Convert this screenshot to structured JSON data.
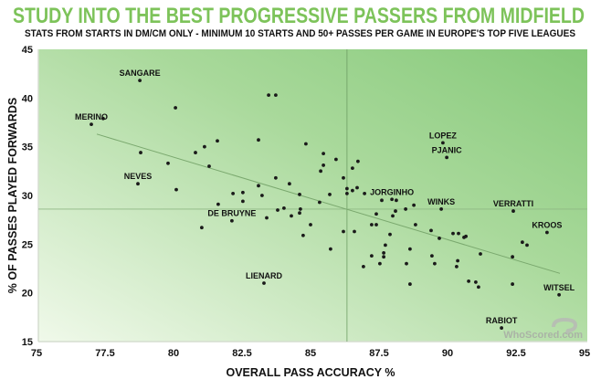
{
  "colors": {
    "title": "#7dc35a",
    "bg_light": "#f0f9ea",
    "bg_dark": "#86c97a",
    "point": "#1a1a1a",
    "line": "#7aa86e"
  },
  "watermark": "WhoScored.com",
  "chart_data": {
    "type": "scatter",
    "title": "STUDY INTO THE BEST PROGRESSIVE PASSERS FROM MIDFIELD",
    "subtitle": "STATS FROM STARTS IN DM/CM ONLY - MINIMUM 10 STARTS AND 50+ PASSES PER GAME IN EUROPE'S TOP FIVE LEAGUES",
    "xlabel": "OVERALL PASS ACCURACY %",
    "ylabel": "% OF PASSES PLAYED FORWARDS",
    "xlim": [
      75,
      95
    ],
    "ylim": [
      15,
      45
    ],
    "xticks": [
      "75",
      "77.5",
      "80",
      "82.5",
      "85",
      "87.5",
      "90",
      "92.5",
      "95"
    ],
    "yticks": [
      "15",
      "20",
      "25",
      "30",
      "35",
      "40",
      "45"
    ],
    "grid": false,
    "reference_lines": {
      "x": 86.33,
      "y": 28.6
    },
    "trendline": [
      [
        77.2,
        36.3
      ],
      [
        94.1,
        22.0
      ]
    ],
    "points": [
      {
        "x": 78.77,
        "y": 41.8,
        "label": "SANGARE"
      },
      {
        "x": 80.07,
        "y": 39.0
      },
      {
        "x": 83.47,
        "y": 40.3
      },
      {
        "x": 83.73,
        "y": 40.3
      },
      {
        "x": 77.43,
        "y": 37.9
      },
      {
        "x": 77.0,
        "y": 37.3,
        "label": "MERINO"
      },
      {
        "x": 78.8,
        "y": 34.4
      },
      {
        "x": 79.8,
        "y": 33.3
      },
      {
        "x": 80.8,
        "y": 34.4
      },
      {
        "x": 81.13,
        "y": 35.0
      },
      {
        "x": 81.6,
        "y": 35.6
      },
      {
        "x": 83.1,
        "y": 35.7
      },
      {
        "x": 84.83,
        "y": 35.3
      },
      {
        "x": 81.3,
        "y": 33.0
      },
      {
        "x": 83.73,
        "y": 31.8
      },
      {
        "x": 84.23,
        "y": 31.2
      },
      {
        "x": 83.1,
        "y": 31.0
      },
      {
        "x": 78.7,
        "y": 31.2,
        "label": "NEVES"
      },
      {
        "x": 80.1,
        "y": 30.6
      },
      {
        "x": 82.17,
        "y": 30.2
      },
      {
        "x": 82.53,
        "y": 30.3
      },
      {
        "x": 83.23,
        "y": 30.0
      },
      {
        "x": 84.6,
        "y": 30.1
      },
      {
        "x": 85.7,
        "y": 30.1
      },
      {
        "x": 86.33,
        "y": 30.7
      },
      {
        "x": 86.33,
        "y": 30.2
      },
      {
        "x": 86.53,
        "y": 30.5
      },
      {
        "x": 86.7,
        "y": 30.8
      },
      {
        "x": 86.97,
        "y": 30.2
      },
      {
        "x": 81.63,
        "y": 29.1
      },
      {
        "x": 82.53,
        "y": 29.4
      },
      {
        "x": 85.33,
        "y": 29.3
      },
      {
        "x": 83.8,
        "y": 28.5
      },
      {
        "x": 84.03,
        "y": 28.7
      },
      {
        "x": 84.63,
        "y": 28.6
      },
      {
        "x": 84.6,
        "y": 28.2
      },
      {
        "x": 84.3,
        "y": 27.9
      },
      {
        "x": 83.4,
        "y": 27.7
      },
      {
        "x": 82.13,
        "y": 27.4,
        "label": "DE BRUYNE"
      },
      {
        "x": 81.03,
        "y": 26.7
      },
      {
        "x": 85.0,
        "y": 27.0
      },
      {
        "x": 86.2,
        "y": 26.3
      },
      {
        "x": 86.6,
        "y": 26.3
      },
      {
        "x": 84.73,
        "y": 25.9
      },
      {
        "x": 85.73,
        "y": 24.5
      },
      {
        "x": 87.23,
        "y": 23.8
      },
      {
        "x": 86.93,
        "y": 22.7
      },
      {
        "x": 87.53,
        "y": 23.0
      },
      {
        "x": 87.73,
        "y": 24.9
      },
      {
        "x": 87.67,
        "y": 24.1
      },
      {
        "x": 87.67,
        "y": 23.7
      },
      {
        "x": 87.9,
        "y": 26.0
      },
      {
        "x": 87.4,
        "y": 28.1
      },
      {
        "x": 87.23,
        "y": 27.0
      },
      {
        "x": 87.4,
        "y": 27.0
      },
      {
        "x": 87.6,
        "y": 29.5
      },
      {
        "x": 87.97,
        "y": 29.6,
        "label": "JORGINHO"
      },
      {
        "x": 83.3,
        "y": 21.0,
        "label": "LIENARD"
      },
      {
        "x": 88.13,
        "y": 29.5
      },
      {
        "x": 88.77,
        "y": 29.0
      },
      {
        "x": 88.47,
        "y": 28.6
      },
      {
        "x": 88.1,
        "y": 28.4
      },
      {
        "x": 88.0,
        "y": 27.9
      },
      {
        "x": 89.77,
        "y": 28.6,
        "label": "WINKS"
      },
      {
        "x": 92.4,
        "y": 28.4,
        "label": "VERRATTI"
      },
      {
        "x": 88.83,
        "y": 27.0
      },
      {
        "x": 89.4,
        "y": 26.4
      },
      {
        "x": 90.2,
        "y": 26.1
      },
      {
        "x": 90.4,
        "y": 26.1
      },
      {
        "x": 90.6,
        "y": 25.7
      },
      {
        "x": 90.67,
        "y": 25.8
      },
      {
        "x": 89.7,
        "y": 25.6
      },
      {
        "x": 88.63,
        "y": 24.5
      },
      {
        "x": 91.2,
        "y": 24.0
      },
      {
        "x": 92.37,
        "y": 23.7
      },
      {
        "x": 92.73,
        "y": 25.2
      },
      {
        "x": 92.9,
        "y": 24.9
      },
      {
        "x": 93.63,
        "y": 26.2,
        "label": "KROOS"
      },
      {
        "x": 89.43,
        "y": 23.8
      },
      {
        "x": 89.53,
        "y": 23.0
      },
      {
        "x": 88.5,
        "y": 23.0
      },
      {
        "x": 90.37,
        "y": 23.3
      },
      {
        "x": 90.33,
        "y": 22.7
      },
      {
        "x": 90.77,
        "y": 21.2
      },
      {
        "x": 91.03,
        "y": 21.1
      },
      {
        "x": 91.13,
        "y": 20.6
      },
      {
        "x": 92.37,
        "y": 20.9
      },
      {
        "x": 88.63,
        "y": 20.9
      },
      {
        "x": 94.07,
        "y": 19.8,
        "label": "WITSEL"
      },
      {
        "x": 91.97,
        "y": 16.4,
        "label": "RABIOT"
      },
      {
        "x": 89.83,
        "y": 35.4,
        "label": "LOPEZ"
      },
      {
        "x": 89.97,
        "y": 33.9,
        "label": "PJANIC"
      },
      {
        "x": 85.47,
        "y": 34.3
      },
      {
        "x": 85.93,
        "y": 33.7
      },
      {
        "x": 85.47,
        "y": 33.1
      },
      {
        "x": 85.37,
        "y": 32.5
      },
      {
        "x": 86.73,
        "y": 33.5
      },
      {
        "x": 86.53,
        "y": 32.8
      },
      {
        "x": 86.2,
        "y": 31.8
      }
    ]
  }
}
